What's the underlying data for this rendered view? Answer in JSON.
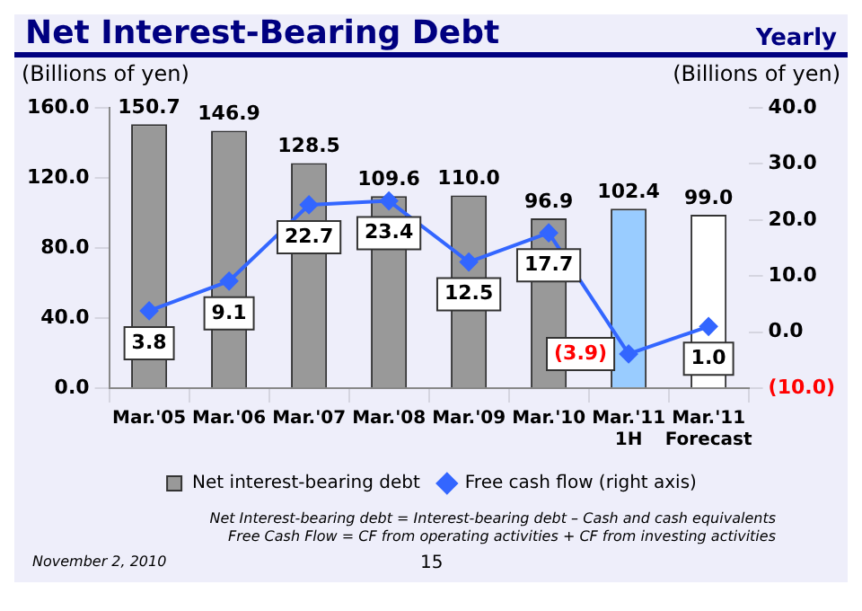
{
  "chart_data": {
    "type": "bar",
    "title": "Net Interest-Bearing Debt",
    "subtitle": "Yearly",
    "ylabel": "(Billions of yen)",
    "y2label": "(Billions of yen)",
    "categories": [
      "Mar.'05",
      "Mar.'06",
      "Mar.'07",
      "Mar.'08",
      "Mar.'09",
      "Mar.'10",
      "Mar.'11\n1H",
      "Mar.'11\nForecast"
    ],
    "series": [
      {
        "name": "Net interest-bearing debt",
        "color": "#999999",
        "colors": [
          "#999999",
          "#999999",
          "#999999",
          "#999999",
          "#999999",
          "#999999",
          "#99ccff",
          "#ffffff"
        ],
        "values": [
          150.7,
          146.9,
          128.5,
          109.6,
          110.0,
          96.9,
          102.4,
          99.0
        ],
        "value_labels": [
          "150.7",
          "146.9",
          "128.5",
          "109.6",
          "110.0",
          "96.9",
          "102.4",
          "99.0"
        ]
      },
      {
        "name": "Free cash flow (right axis)",
        "type": "line",
        "axis": "y2",
        "color": "#3366ff",
        "values": [
          3.8,
          9.1,
          22.7,
          23.4,
          12.5,
          17.7,
          -3.9,
          1.0
        ],
        "value_labels": [
          "3.8",
          "9.1",
          "22.7",
          "23.4",
          "12.5",
          "17.7",
          "(3.9)",
          "1.0"
        ]
      }
    ],
    "ylim": [
      0,
      160
    ],
    "yticks": [
      {
        "value": 0,
        "label": "0.0"
      },
      {
        "value": 40,
        "label": "40.0"
      },
      {
        "value": 80,
        "label": "80.0"
      },
      {
        "value": 120,
        "label": "120.0"
      },
      {
        "value": 160,
        "label": "160.0"
      }
    ],
    "y2lim": [
      -10,
      40
    ],
    "y2ticks": [
      {
        "value": -10,
        "label": "(10.0)"
      },
      {
        "value": 0,
        "label": "0.0"
      },
      {
        "value": 10,
        "label": "10.0"
      },
      {
        "value": 20,
        "label": "20.0"
      },
      {
        "value": 30,
        "label": "30.0"
      },
      {
        "value": 40,
        "label": "40.0"
      }
    ],
    "grid": false,
    "legend": "bottom",
    "marker": "diamond",
    "line_style": "solid",
    "annotations": [
      "Net Interest-bearing debt = Interest-bearing debt – Cash and cash equivalents",
      "Free Cash Flow = CF from operating activities + CF from investing activities",
      "November 2, 2010",
      "15"
    ]
  }
}
